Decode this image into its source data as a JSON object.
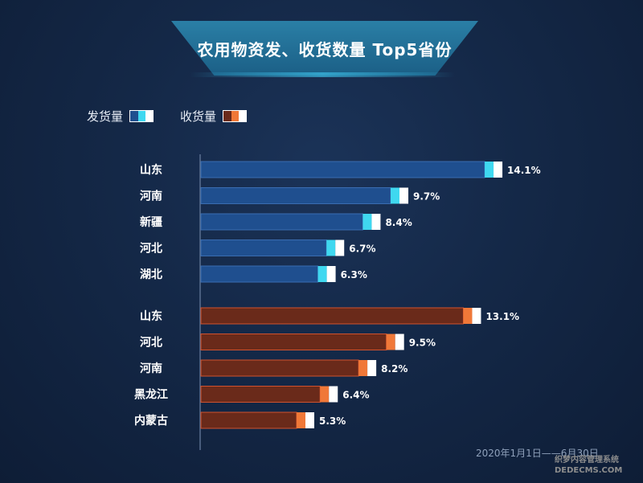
{
  "title": "农用物资发、收货数量 Top5省份",
  "legend": {
    "ship_label": "发货量",
    "receive_label": "收货量"
  },
  "footer": "2020年1月1日——6月30日",
  "watermark": {
    "line1": "织梦内容管理系统",
    "line2": "DEDECMS.COM"
  },
  "colors": {
    "ship_bar": "#1f4f8f",
    "ship_tip": "#3fd8f0",
    "receive_bar": "#6a2a1a",
    "receive_tip": "#f07838",
    "tip_white": "#ffffff"
  },
  "chart_data": [
    {
      "type": "bar",
      "orientation": "horizontal",
      "name": "发货量",
      "categories": [
        "山东",
        "河南",
        "新疆",
        "河北",
        "湖北"
      ],
      "values": [
        14.1,
        9.7,
        8.4,
        6.7,
        6.3
      ],
      "labels": [
        "14.1%",
        "9.7%",
        "8.4%",
        "6.7%",
        "6.3%"
      ],
      "unit": "%"
    },
    {
      "type": "bar",
      "orientation": "horizontal",
      "name": "收货量",
      "categories": [
        "山东",
        "河北",
        "河南",
        "黑龙江",
        "内蒙古"
      ],
      "values": [
        13.1,
        9.5,
        8.2,
        6.4,
        5.3
      ],
      "labels": [
        "13.1%",
        "9.5%",
        "8.2%",
        "6.4%",
        "5.3%"
      ],
      "unit": "%"
    }
  ]
}
